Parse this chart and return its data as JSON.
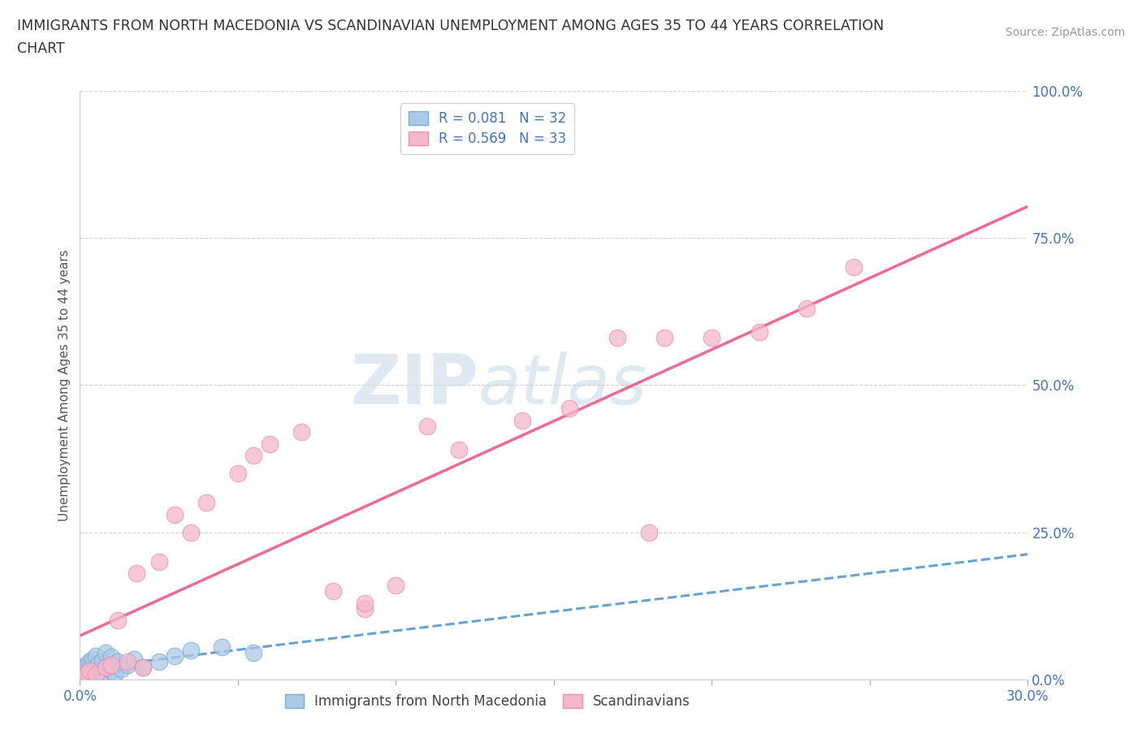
{
  "title_line1": "IMMIGRANTS FROM NORTH MACEDONIA VS SCANDINAVIAN UNEMPLOYMENT AMONG AGES 35 TO 44 YEARS CORRELATION",
  "title_line2": "CHART",
  "source_text": "Source: ZipAtlas.com",
  "ylabel": "Unemployment Among Ages 35 to 44 years",
  "xlim": [
    0.0,
    0.3
  ],
  "ylim": [
    0.0,
    1.0
  ],
  "x_ticks": [
    0.0,
    0.05,
    0.1,
    0.15,
    0.2,
    0.25,
    0.3
  ],
  "x_tick_labels": [
    "0.0%",
    "",
    "",
    "",
    "",
    "",
    "30.0%"
  ],
  "y_ticks": [
    0.0,
    0.25,
    0.5,
    0.75,
    1.0
  ],
  "y_tick_labels": [
    "0.0%",
    "25.0%",
    "50.0%",
    "75.0%",
    "100.0%"
  ],
  "legend_label_blue": "R = 0.081   N = 32",
  "legend_label_pink": "R = 0.569   N = 33",
  "bottom_label_blue": "Immigrants from North Macedonia",
  "bottom_label_pink": "Scandinavians",
  "blue_fill": "#adc9e8",
  "blue_edge": "#7aadd4",
  "pink_fill": "#f5b8ca",
  "pink_edge": "#e890ac",
  "blue_line_color": "#5a9fd4",
  "pink_line_color": "#f06090",
  "tick_color": "#4472c4",
  "watermark_zip": "ZIP",
  "watermark_atlas": "atlas",
  "blue_scatter_x": [
    0.001,
    0.001,
    0.002,
    0.002,
    0.003,
    0.003,
    0.003,
    0.004,
    0.004,
    0.005,
    0.005,
    0.005,
    0.006,
    0.006,
    0.007,
    0.007,
    0.008,
    0.008,
    0.009,
    0.01,
    0.01,
    0.011,
    0.012,
    0.013,
    0.015,
    0.017,
    0.02,
    0.025,
    0.03,
    0.035,
    0.045,
    0.055
  ],
  "blue_scatter_y": [
    0.01,
    0.02,
    0.015,
    0.025,
    0.005,
    0.018,
    0.03,
    0.012,
    0.035,
    0.008,
    0.022,
    0.04,
    0.015,
    0.028,
    0.01,
    0.032,
    0.02,
    0.045,
    0.025,
    0.015,
    0.038,
    0.01,
    0.03,
    0.018,
    0.025,
    0.035,
    0.02,
    0.03,
    0.04,
    0.05,
    0.055,
    0.045
  ],
  "pink_scatter_x": [
    0.001,
    0.002,
    0.003,
    0.005,
    0.008,
    0.01,
    0.012,
    0.015,
    0.018,
    0.02,
    0.025,
    0.03,
    0.035,
    0.04,
    0.05,
    0.055,
    0.06,
    0.07,
    0.08,
    0.09,
    0.1,
    0.11,
    0.12,
    0.14,
    0.155,
    0.17,
    0.185,
    0.2,
    0.215,
    0.23,
    0.245,
    0.18,
    0.09
  ],
  "pink_scatter_y": [
    0.005,
    0.01,
    0.015,
    0.008,
    0.02,
    0.025,
    0.1,
    0.03,
    0.18,
    0.02,
    0.2,
    0.28,
    0.25,
    0.3,
    0.35,
    0.38,
    0.4,
    0.42,
    0.15,
    0.12,
    0.16,
    0.43,
    0.39,
    0.44,
    0.46,
    0.58,
    0.58,
    0.58,
    0.59,
    0.63,
    0.7,
    0.25,
    0.13
  ]
}
